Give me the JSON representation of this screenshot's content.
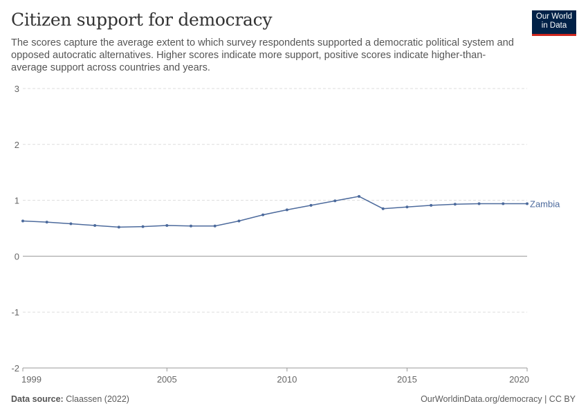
{
  "header": {
    "title": "Citizen support for democracy",
    "subtitle": "The scores capture the average extent to which survey respondents supported a democratic political system and opposed autocratic alternatives. Higher scores indicate more support, positive scores indicate higher-than-average support across countries and years.",
    "logo": "Our World in Data"
  },
  "chart_data": {
    "type": "line",
    "title": "Citizen support for democracy",
    "xlabel": "",
    "ylabel": "",
    "xlim": [
      1999,
      2020
    ],
    "ylim": [
      -2,
      3
    ],
    "xticks": [
      1999,
      2005,
      2010,
      2015,
      2020
    ],
    "yticks": [
      -2,
      -1,
      0,
      1,
      2,
      3
    ],
    "grid": true,
    "series": [
      {
        "name": "Zambia",
        "color": "#4c6a9c",
        "x": [
          1999,
          2000,
          2001,
          2002,
          2003,
          2004,
          2005,
          2006,
          2007,
          2008,
          2009,
          2010,
          2011,
          2012,
          2013,
          2014,
          2015,
          2016,
          2017,
          2018,
          2019,
          2020
        ],
        "values": [
          0.63,
          0.61,
          0.58,
          0.55,
          0.52,
          0.53,
          0.55,
          0.54,
          0.54,
          0.63,
          0.74,
          0.83,
          0.91,
          0.99,
          1.07,
          0.85,
          0.88,
          0.91,
          0.93,
          0.94,
          0.94,
          0.94
        ]
      }
    ]
  },
  "footer": {
    "source_label": "Data source:",
    "source": "Claassen (2022)",
    "credit": "OurWorldinData.org/democracy | CC BY"
  }
}
